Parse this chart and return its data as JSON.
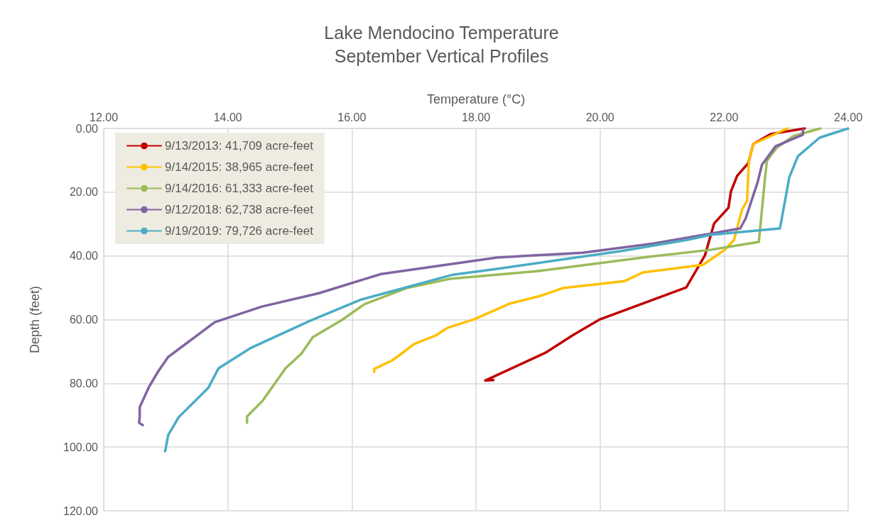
{
  "chart_data": {
    "type": "line",
    "title": "Lake Mendocino Temperature",
    "subtitle": "September Vertical Profiles",
    "xlabel": "Temperature (°C)",
    "ylabel": "Depth (feet)",
    "xlim": [
      12,
      24
    ],
    "xticks": [
      {
        "value": 12,
        "label": "12.00"
      },
      {
        "value": 14,
        "label": "14.00"
      },
      {
        "value": 16,
        "label": "16.00"
      },
      {
        "value": 18,
        "label": "18.00"
      },
      {
        "value": 20,
        "label": "20.00"
      },
      {
        "value": 22,
        "label": "22.00"
      },
      {
        "value": 24,
        "label": "24.00"
      }
    ],
    "ylim": [
      120,
      0
    ],
    "yticks": [
      {
        "value": 0,
        "label": "0.00"
      },
      {
        "value": 20,
        "label": "20.00"
      },
      {
        "value": 40,
        "label": "40.00"
      },
      {
        "value": 60,
        "label": "60.00"
      },
      {
        "value": 80,
        "label": "80.00"
      },
      {
        "value": 100,
        "label": "100.00"
      },
      {
        "value": 120,
        "label": "120.00"
      }
    ],
    "grid": true,
    "legend": "top left",
    "marker": "none",
    "line_style": "solid",
    "series": [
      {
        "name": "9/13/2013: 41,709 acre-feet",
        "color": "#c00000",
        "x": [
          23.3,
          22.75,
          22.47,
          22.39,
          22.21,
          22.11,
          22.07,
          21.84,
          21.69,
          21.39,
          20.0,
          19.57,
          19.12,
          18.15,
          18.28
        ],
        "values": [
          0,
          1.8,
          4.9,
          10.9,
          14.9,
          19.8,
          24.9,
          29.8,
          39.9,
          49.9,
          59.9,
          64.8,
          70.4,
          79.1,
          79.0
        ]
      },
      {
        "name": "9/14/2015: 38,965 acre-feet",
        "color": "#ffc000",
        "x": [
          23.02,
          22.47,
          22.4,
          22.37,
          22.29,
          22.16,
          22.01,
          21.66,
          20.69,
          20.4,
          19.4,
          19.03,
          18.54,
          17.97,
          17.54,
          17.35,
          17.0,
          16.82,
          16.65,
          16.36,
          16.36
        ],
        "values": [
          0,
          4.9,
          10.2,
          22.7,
          25.4,
          35,
          38.1,
          42.8,
          45.2,
          47.9,
          50.1,
          52.6,
          55,
          59.9,
          62.6,
          65,
          67.7,
          70.4,
          72.8,
          75.5,
          76.4
        ]
      },
      {
        "name": "9/14/2016: 61,333 acre-feet",
        "color": "#9bbb59",
        "x": [
          23.55,
          23.12,
          22.85,
          22.69,
          22.66,
          22.56,
          21.78,
          20.78,
          18.98,
          17.58,
          16.88,
          16.2,
          15.84,
          15.37,
          15.19,
          14.93,
          14.56,
          14.31,
          14.31
        ],
        "values": [
          0,
          2.4,
          6,
          10.2,
          15.4,
          35.6,
          38.1,
          40.3,
          44.8,
          47.2,
          50.1,
          55.2,
          60.1,
          65.5,
          70.6,
          75.3,
          85.5,
          90.4,
          92.4
        ]
      },
      {
        "name": "9/12/2018: 62,738 acre-feet",
        "color": "#8064a2",
        "x": [
          23.27,
          23.27,
          22.83,
          22.61,
          22.54,
          22.35,
          22.26,
          20.86,
          19.72,
          18.34,
          16.47,
          15.47,
          14.55,
          13.79,
          13.04,
          12.88,
          12.73,
          12.58,
          12.58,
          12.57,
          12.63
        ],
        "values": [
          0.4,
          2,
          5.6,
          11.4,
          16.9,
          28.1,
          31.4,
          36.1,
          39,
          40.5,
          45.7,
          51.7,
          55.9,
          60.8,
          71.7,
          76.2,
          81.1,
          87.5,
          90.6,
          92.4,
          93.1
        ]
      },
      {
        "name": "9/19/2019: 79,726 acre-feet",
        "color": "#4bacc6",
        "x": [
          24.0,
          23.54,
          23.19,
          23.05,
          22.9,
          21.78,
          21.4,
          20.33,
          18.34,
          17.63,
          16.15,
          15.32,
          14.36,
          13.85,
          13.69,
          13.21,
          13.04,
          12.99
        ],
        "values": [
          0,
          2.9,
          8.7,
          15.4,
          31.4,
          33.4,
          35,
          38.5,
          44.1,
          45.9,
          53.7,
          60.4,
          69,
          75.3,
          81.3,
          90.6,
          96.2,
          101.3
        ]
      }
    ]
  }
}
